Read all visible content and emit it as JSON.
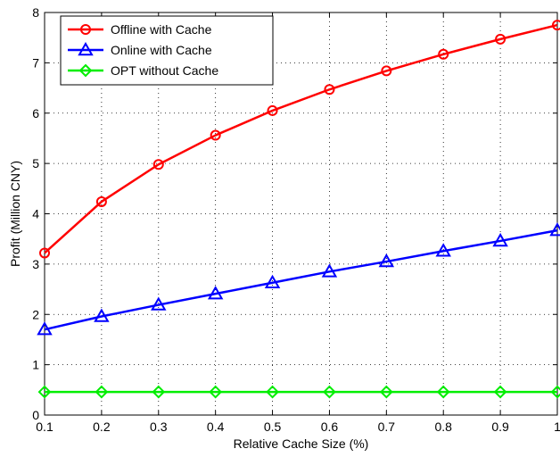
{
  "chart_data": {
    "type": "line",
    "title": "",
    "xlabel": "Relative Cache Size (%)",
    "ylabel": "Profit (Million CNY)",
    "xlim": [
      0.1,
      1
    ],
    "ylim": [
      0,
      8
    ],
    "x_ticks": [
      "0.1",
      "0.2",
      "0.3",
      "0.4",
      "0.5",
      "0.6",
      "0.7",
      "0.8",
      "0.9",
      "1"
    ],
    "y_ticks": [
      "0",
      "1",
      "2",
      "3",
      "4",
      "5",
      "6",
      "7",
      "8"
    ],
    "grid": true,
    "legend_position": "top-left",
    "x": [
      0.1,
      0.2,
      0.3,
      0.4,
      0.5,
      0.6,
      0.7,
      0.8,
      0.9,
      1.0
    ],
    "series": [
      {
        "name": "Offline with Cache",
        "color": "#ff0000",
        "marker": "circle",
        "values": [
          3.22,
          4.24,
          4.98,
          5.56,
          6.05,
          6.47,
          6.84,
          7.17,
          7.47,
          7.75
        ]
      },
      {
        "name": "Online with Cache",
        "color": "#0000ff",
        "marker": "triangle",
        "values": [
          1.7,
          1.96,
          2.19,
          2.41,
          2.63,
          2.85,
          3.05,
          3.26,
          3.46,
          3.67
        ]
      },
      {
        "name": "OPT without Cache",
        "color": "#00ee00",
        "marker": "diamond",
        "values": [
          0.46,
          0.46,
          0.46,
          0.46,
          0.46,
          0.46,
          0.46,
          0.46,
          0.46,
          0.46
        ]
      }
    ]
  }
}
